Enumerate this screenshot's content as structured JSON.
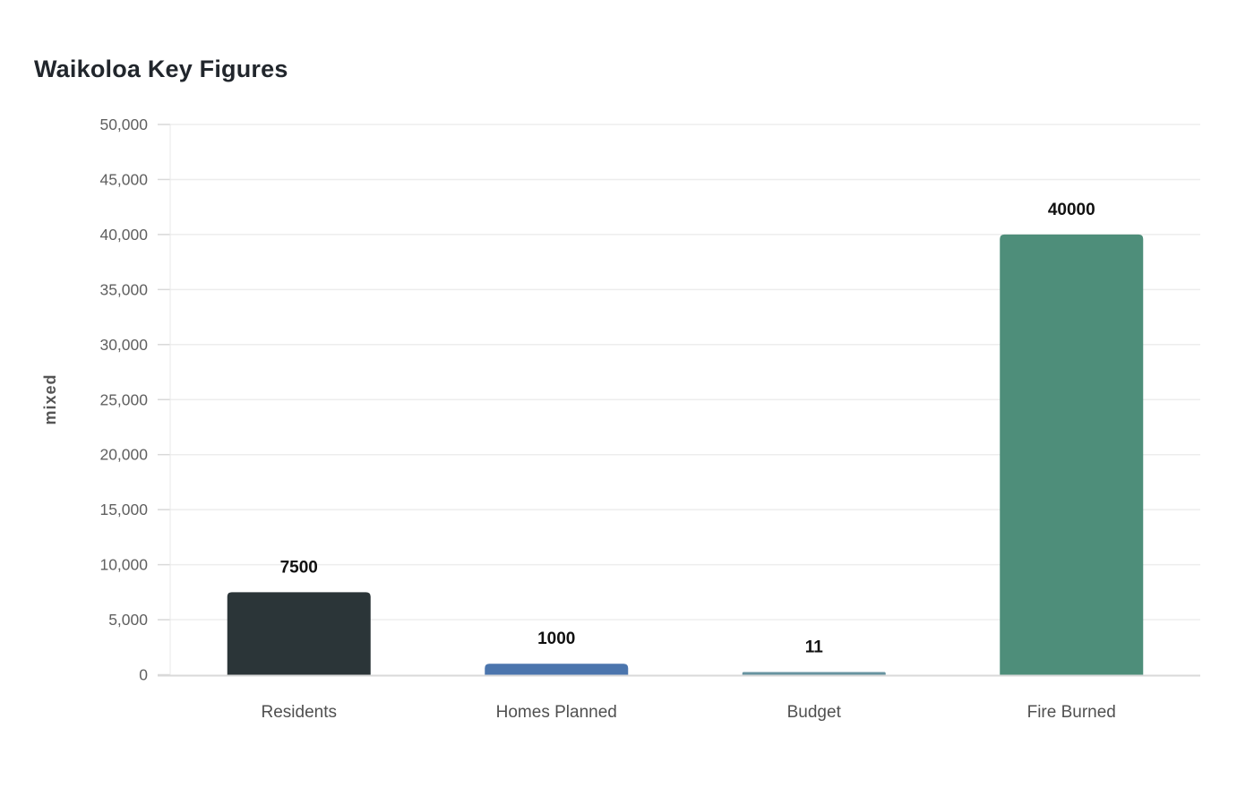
{
  "title": "Waikoloa Key Figures",
  "chart_data": {
    "type": "bar",
    "title": "Waikoloa Key Figures",
    "categories": [
      "Residents",
      "Homes Planned",
      "Budget",
      "Fire Burned"
    ],
    "values": [
      7500,
      1000,
      11,
      40000
    ],
    "value_labels": [
      "7500",
      "1000",
      "11",
      "40000"
    ],
    "bar_colors": [
      "#2b3538",
      "#4b75ad",
      "#6793a0",
      "#4e8e7a"
    ],
    "xlabel": "",
    "ylabel": "mixed",
    "ylim": [
      0,
      50000
    ],
    "ytick_step": 5000,
    "ytick_labels": [
      "0",
      "5,000",
      "10,000",
      "15,000",
      "20,000",
      "25,000",
      "30,000",
      "35,000",
      "40,000",
      "45,000",
      "50,000"
    ],
    "grid": true,
    "legend": "none",
    "style": {
      "grid_color": "#ededed",
      "axis_color": "#d9d9d9",
      "y_axis_line_color": "#e9e9e9",
      "tick_label_color": "#606060",
      "category_label_color": "#505050",
      "value_label_color": "#111111",
      "ylabel_color": "#555555",
      "title_color": "#21262c",
      "background": "#ffffff"
    }
  }
}
